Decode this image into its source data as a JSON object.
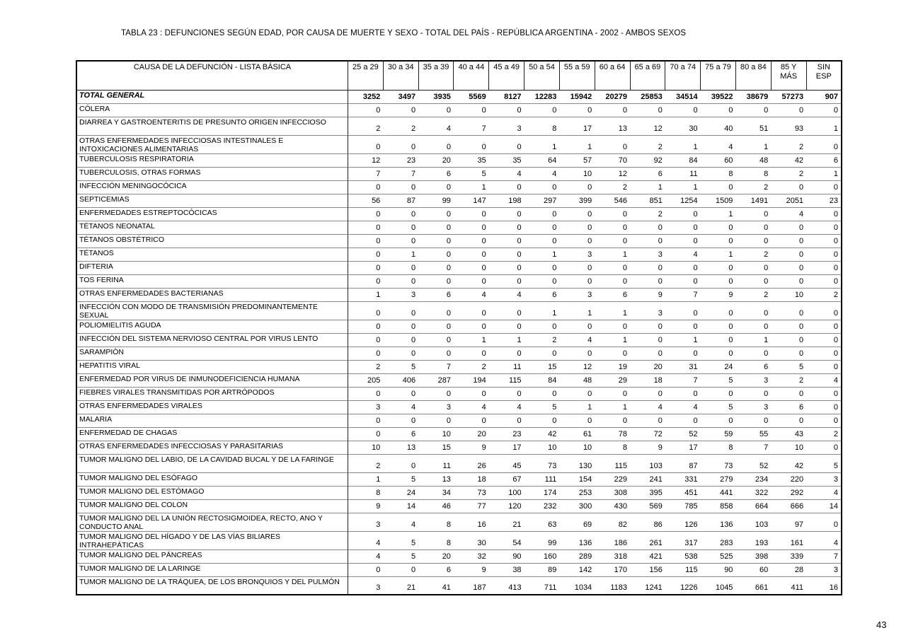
{
  "page": {
    "title": "TABLA 23 : DEFUNCIONES SEGÚN EDAD, POR CAUSA DE MUERTE Y SEXO - TOTAL DEL PAÍS - REPÚBLICA ARGENTINA - 2002 - AMBOS SEXOS",
    "page_number": "43"
  },
  "table": {
    "label_header": "CAUSA DE LA DEFUNCIÓN - LISTA BÁSICA",
    "age_headers": [
      "25 a 29",
      "30 a 34",
      "35 a 39",
      "40 a 44",
      "45 a 49",
      "50 a 54",
      "55 a 59",
      "60 a 64",
      "65 a 69",
      "70 a 74",
      "75 a 79",
      "80 a 84",
      "85 Y\nMÁS",
      "SIN\nESP"
    ],
    "rows": [
      {
        "label": "TOTAL GENERAL",
        "bold": true,
        "tall": false,
        "values": [
          3252,
          3497,
          3935,
          5569,
          8127,
          12283,
          15942,
          20279,
          25853,
          34514,
          39522,
          38679,
          57273,
          907
        ]
      },
      {
        "label": "CÓLERA",
        "bold": false,
        "tall": false,
        "values": [
          0,
          0,
          0,
          0,
          0,
          0,
          0,
          0,
          0,
          0,
          0,
          0,
          0,
          0
        ]
      },
      {
        "label": "DIARREA Y GASTROENTERITIS DE PRESUNTO ORIGEN INFECCIOSO",
        "bold": false,
        "tall": true,
        "values": [
          2,
          2,
          4,
          7,
          3,
          8,
          17,
          13,
          12,
          30,
          40,
          51,
          93,
          1
        ]
      },
      {
        "label": "OTRAS ENFERMEDADES INFECCIOSAS INTESTINALES E INTOXICACIONES ALIMENTARIAS",
        "bold": false,
        "tall": true,
        "values": [
          0,
          0,
          0,
          0,
          0,
          1,
          1,
          0,
          2,
          1,
          4,
          1,
          2,
          0
        ]
      },
      {
        "label": "TUBERCULOSIS RESPIRATORIA",
        "bold": false,
        "tall": false,
        "values": [
          12,
          23,
          20,
          35,
          35,
          64,
          57,
          70,
          92,
          84,
          60,
          48,
          42,
          6
        ]
      },
      {
        "label": "TUBERCULOSIS, OTRAS FORMAS",
        "bold": false,
        "tall": false,
        "values": [
          7,
          7,
          6,
          5,
          4,
          4,
          10,
          12,
          6,
          11,
          8,
          8,
          2,
          1
        ]
      },
      {
        "label": "INFECCIÓN MENINGOCÓCICA",
        "bold": false,
        "tall": false,
        "values": [
          0,
          0,
          0,
          1,
          0,
          0,
          0,
          2,
          1,
          1,
          0,
          2,
          0,
          0
        ]
      },
      {
        "label": "SEPTICEMIAS",
        "bold": false,
        "tall": false,
        "values": [
          56,
          87,
          99,
          147,
          198,
          297,
          399,
          546,
          851,
          1254,
          1509,
          1491,
          2051,
          23
        ]
      },
      {
        "label": "ENFERMEDADES ESTREPTOCÓCICAS",
        "bold": false,
        "tall": false,
        "values": [
          0,
          0,
          0,
          0,
          0,
          0,
          0,
          0,
          2,
          0,
          1,
          0,
          4,
          0
        ]
      },
      {
        "label": "TÉTANOS NEONATAL",
        "bold": false,
        "tall": false,
        "values": [
          0,
          0,
          0,
          0,
          0,
          0,
          0,
          0,
          0,
          0,
          0,
          0,
          0,
          0
        ]
      },
      {
        "label": "TÉTANOS OBSTÉTRICO",
        "bold": false,
        "tall": false,
        "values": [
          0,
          0,
          0,
          0,
          0,
          0,
          0,
          0,
          0,
          0,
          0,
          0,
          0,
          0
        ]
      },
      {
        "label": "TÉTANOS",
        "bold": false,
        "tall": false,
        "values": [
          0,
          1,
          0,
          0,
          0,
          1,
          3,
          1,
          3,
          4,
          1,
          2,
          0,
          0
        ]
      },
      {
        "label": "DIFTERIA",
        "bold": false,
        "tall": false,
        "values": [
          0,
          0,
          0,
          0,
          0,
          0,
          0,
          0,
          0,
          0,
          0,
          0,
          0,
          0
        ]
      },
      {
        "label": "TOS FERINA",
        "bold": false,
        "tall": false,
        "values": [
          0,
          0,
          0,
          0,
          0,
          0,
          0,
          0,
          0,
          0,
          0,
          0,
          0,
          0
        ]
      },
      {
        "label": "OTRAS ENFERMEDADES BACTERIANAS",
        "bold": false,
        "tall": false,
        "values": [
          1,
          3,
          6,
          4,
          4,
          6,
          3,
          6,
          9,
          7,
          9,
          2,
          10,
          2
        ]
      },
      {
        "label": "INFECCIÓN CON MODO DE TRANSMISIÓN PREDOMINANTEMENTE SEXUAL",
        "bold": false,
        "tall": true,
        "values": [
          0,
          0,
          0,
          0,
          0,
          1,
          1,
          1,
          3,
          0,
          0,
          0,
          0,
          0
        ]
      },
      {
        "label": "POLIOMIELITIS AGUDA",
        "bold": false,
        "tall": false,
        "values": [
          0,
          0,
          0,
          0,
          0,
          0,
          0,
          0,
          0,
          0,
          0,
          0,
          0,
          0
        ]
      },
      {
        "label": "INFECCIÓN DEL SISTEMA NERVIOSO CENTRAL POR VIRUS LENTO",
        "bold": false,
        "tall": false,
        "values": [
          0,
          0,
          0,
          1,
          1,
          2,
          4,
          1,
          0,
          1,
          0,
          1,
          0,
          0
        ]
      },
      {
        "label": "SARAMPIÓN",
        "bold": false,
        "tall": false,
        "values": [
          0,
          0,
          0,
          0,
          0,
          0,
          0,
          0,
          0,
          0,
          0,
          0,
          0,
          0
        ]
      },
      {
        "label": "HEPATITIS VIRAL",
        "bold": false,
        "tall": false,
        "values": [
          2,
          5,
          7,
          2,
          11,
          15,
          12,
          19,
          20,
          31,
          24,
          6,
          5,
          0
        ]
      },
      {
        "label": "ENFERMEDAD POR VIRUS DE INMUNODEFICIENCIA HUMANA",
        "bold": false,
        "tall": false,
        "values": [
          205,
          406,
          287,
          194,
          115,
          84,
          48,
          29,
          18,
          7,
          5,
          3,
          2,
          4
        ]
      },
      {
        "label": "FIEBRES VIRALES TRANSMITIDAS POR ARTRÓPODOS",
        "bold": false,
        "tall": false,
        "values": [
          0,
          0,
          0,
          0,
          0,
          0,
          0,
          0,
          0,
          0,
          0,
          0,
          0,
          0
        ]
      },
      {
        "label": "OTRAS ENFERMEDADES VIRALES",
        "bold": false,
        "tall": false,
        "values": [
          3,
          4,
          3,
          4,
          4,
          5,
          1,
          1,
          4,
          4,
          5,
          3,
          6,
          0
        ]
      },
      {
        "label": "MALARIA",
        "bold": false,
        "tall": false,
        "values": [
          0,
          0,
          0,
          0,
          0,
          0,
          0,
          0,
          0,
          0,
          0,
          0,
          0,
          0
        ]
      },
      {
        "label": "ENFERMEDAD DE CHAGAS",
        "bold": false,
        "tall": false,
        "values": [
          0,
          6,
          10,
          20,
          23,
          42,
          61,
          78,
          72,
          52,
          59,
          55,
          43,
          2
        ]
      },
      {
        "label": "OTRAS ENFERMEDADES INFECCIOSAS Y PARASITARIAS",
        "bold": false,
        "tall": false,
        "values": [
          10,
          13,
          15,
          9,
          17,
          10,
          10,
          8,
          9,
          17,
          8,
          7,
          10,
          0
        ]
      },
      {
        "label": "TUMOR MALIGNO DEL LABIO, DE LA CAVIDAD BUCAL Y DE LA FARINGE",
        "bold": false,
        "tall": true,
        "values": [
          2,
          0,
          11,
          26,
          45,
          73,
          130,
          115,
          103,
          87,
          73,
          52,
          42,
          5
        ]
      },
      {
        "label": "TUMOR MALIGNO DEL ESÓFAGO",
        "bold": false,
        "tall": false,
        "values": [
          1,
          5,
          13,
          18,
          67,
          111,
          154,
          229,
          241,
          331,
          279,
          234,
          220,
          3
        ]
      },
      {
        "label": "TUMOR MALIGNO DEL ESTÓMAGO",
        "bold": false,
        "tall": false,
        "values": [
          8,
          24,
          34,
          73,
          100,
          174,
          253,
          308,
          395,
          451,
          441,
          322,
          292,
          4
        ]
      },
      {
        "label": "TUMOR MALIGNO DEL COLON",
        "bold": false,
        "tall": false,
        "values": [
          9,
          14,
          46,
          77,
          120,
          232,
          300,
          430,
          569,
          785,
          858,
          664,
          666,
          14
        ]
      },
      {
        "label": "TUMOR MALIGNO DEL LA UNIÓN RECTOSIGMOIDEA, RECTO, ANO Y CONDUCTO ANAL",
        "bold": false,
        "tall": true,
        "values": [
          3,
          4,
          8,
          16,
          21,
          63,
          69,
          82,
          86,
          126,
          136,
          103,
          97,
          0
        ]
      },
      {
        "label": "TUMOR MALIGNO DEL HÍGADO Y DE LAS VÍAS BILIARES INTRAHEPÁTICAS",
        "bold": false,
        "tall": true,
        "values": [
          4,
          5,
          8,
          30,
          54,
          99,
          136,
          186,
          261,
          317,
          283,
          193,
          161,
          4
        ]
      },
      {
        "label": "TUMOR MALIGNO DEL PÁNCREAS",
        "bold": false,
        "tall": false,
        "values": [
          4,
          5,
          20,
          32,
          90,
          160,
          289,
          318,
          421,
          538,
          525,
          398,
          339,
          7
        ]
      },
      {
        "label": "TUMOR MALIGNO DE LA LARINGE",
        "bold": false,
        "tall": false,
        "values": [
          0,
          0,
          6,
          9,
          38,
          89,
          142,
          170,
          156,
          115,
          90,
          60,
          28,
          3
        ]
      },
      {
        "label": "TUMOR MALIGNO DE LA TRÁQUEA, DE LOS BRONQUIOS Y DEL PULMÓN",
        "bold": false,
        "tall": true,
        "values": [
          3,
          21,
          41,
          187,
          413,
          711,
          1034,
          1183,
          1241,
          1226,
          1045,
          661,
          411,
          16
        ]
      }
    ]
  }
}
